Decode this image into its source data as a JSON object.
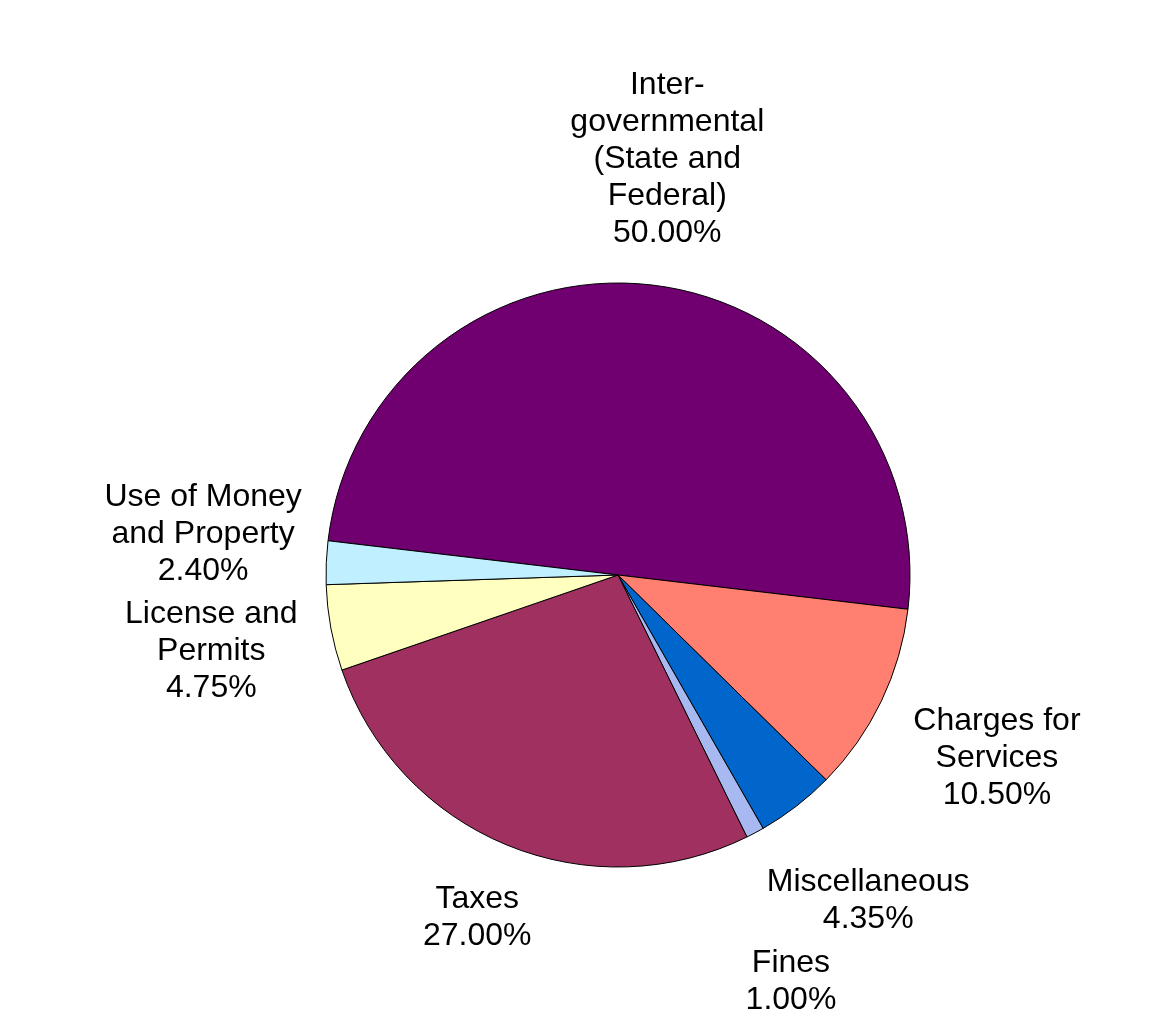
{
  "chart_data": {
    "type": "pie",
    "categories": [
      "Inter-\ngovernmental\n(State and\nFederal)",
      "Charges for\nServices",
      "Miscellaneous",
      "Fines",
      "Taxes",
      "License and\nPermits",
      "Use of Money\nand Property"
    ],
    "values": [
      50,
      10.5,
      4.35,
      1,
      27,
      4.75,
      2.4
    ],
    "value_labels": [
      "50.00%",
      "10.50%",
      "4.35%",
      "1.00%",
      "27.00%",
      "4.75%",
      "2.40%"
    ],
    "colors": [
      "#700070",
      "#ff8070",
      "#0066cc",
      "#a8b8f0",
      "#a03060",
      "#ffffc0",
      "#c0f0ff"
    ]
  }
}
